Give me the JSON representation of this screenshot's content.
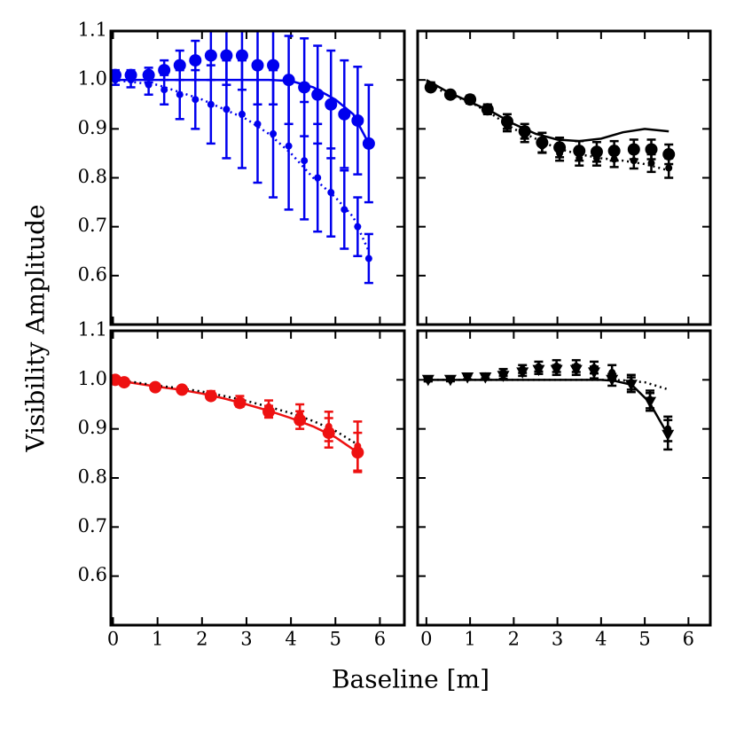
{
  "xlabel": "Baseline [m]",
  "ylabel": "Visibility Amplitude",
  "chart_data": [
    {
      "type": "errorbar",
      "xlim": [
        -0.05,
        6.55
      ],
      "ylim": [
        0.5,
        1.1
      ],
      "xticks": [
        0,
        1,
        2,
        3,
        4,
        5,
        6
      ],
      "yticks": [
        0.6,
        0.7,
        0.8,
        0.9,
        {
          "value": 1,
          "label": "1.0"
        },
        1.1
      ],
      "series": [
        {
          "kind": "line",
          "dash": "solid",
          "color": "#0000ee",
          "x": [
            0,
            1,
            2,
            3,
            3.5,
            4,
            4.5,
            5,
            5.4,
            5.75
          ],
          "values": [
            1.0,
            1.0,
            1.0,
            1.0,
            1.0,
            0.998,
            0.985,
            0.96,
            0.93,
            0.87
          ]
        },
        {
          "kind": "line",
          "dash": "dotted",
          "color": "#0000ee",
          "x": [
            0,
            1,
            2,
            3,
            3.5,
            4,
            4.5,
            5,
            5.4,
            5.75
          ],
          "values": [
            1.0,
            0.99,
            0.96,
            0.92,
            0.89,
            0.85,
            0.8,
            0.76,
            0.72,
            0.65
          ]
        },
        {
          "kind": "errorbar",
          "marker": "circle",
          "size": 7,
          "color": "#0000ee",
          "x": [
            0.05,
            0.4,
            0.8,
            1.15,
            1.5,
            1.85,
            2.2,
            2.55,
            2.9,
            3.25,
            3.6,
            3.95,
            4.3,
            4.6,
            4.9,
            5.2,
            5.5,
            5.75
          ],
          "values": [
            1.01,
            1.01,
            1.01,
            1.02,
            1.03,
            1.04,
            1.05,
            1.05,
            1.05,
            1.03,
            1.03,
            1.0,
            0.985,
            0.97,
            0.95,
            0.93,
            0.917,
            0.87
          ],
          "errors": [
            0.01,
            0.01,
            0.015,
            0.02,
            0.03,
            0.04,
            0.05,
            0.06,
            0.07,
            0.08,
            0.08,
            0.09,
            0.1,
            0.1,
            0.11,
            0.11,
            0.11,
            0.12
          ]
        },
        {
          "kind": "errorbar",
          "marker": "circle",
          "size": 4,
          "color": "#0000ee",
          "x": [
            0.05,
            0.4,
            0.8,
            1.15,
            1.5,
            1.85,
            2.2,
            2.55,
            2.9,
            3.25,
            3.6,
            3.95,
            4.3,
            4.6,
            4.9,
            5.2,
            5.5,
            5.75
          ],
          "values": [
            1.0,
            1.0,
            0.99,
            0.98,
            0.97,
            0.96,
            0.95,
            0.94,
            0.93,
            0.91,
            0.89,
            0.865,
            0.835,
            0.8,
            0.77,
            0.735,
            0.7,
            0.635
          ],
          "errors": [
            0.01,
            0.015,
            0.02,
            0.03,
            0.05,
            0.06,
            0.08,
            0.1,
            0.11,
            0.12,
            0.13,
            0.13,
            0.12,
            0.11,
            0.09,
            0.08,
            0.06,
            0.05
          ]
        }
      ]
    },
    {
      "type": "errorbar",
      "xlim": [
        -0.2,
        6.5
      ],
      "ylim": [
        0.5,
        1.1
      ],
      "xticks": [
        0,
        1,
        2,
        3,
        4,
        5,
        6
      ],
      "yticks": [
        0.6,
        0.7,
        0.8,
        0.9,
        {
          "value": 1,
          "label": "1.0"
        },
        1.1
      ],
      "series": [
        {
          "kind": "line",
          "dash": "solid",
          "color": "#000000",
          "x": [
            0,
            0.5,
            1,
            1.5,
            2,
            2.5,
            3,
            3.5,
            4,
            4.5,
            5,
            5.55
          ],
          "values": [
            1.0,
            0.975,
            0.955,
            0.935,
            0.91,
            0.89,
            0.878,
            0.875,
            0.88,
            0.893,
            0.9,
            0.895
          ]
        },
        {
          "kind": "line",
          "dash": "dotted",
          "color": "#000000",
          "x": [
            0,
            0.5,
            1,
            1.5,
            2,
            2.5,
            3,
            3.5,
            4,
            4.5,
            5,
            5.55
          ],
          "values": [
            0.995,
            0.97,
            0.955,
            0.93,
            0.9,
            0.88,
            0.86,
            0.848,
            0.84,
            0.835,
            0.828,
            0.815
          ]
        },
        {
          "kind": "errorbar",
          "marker": "circle",
          "size": 7,
          "color": "#000000",
          "x": [
            0.1,
            0.55,
            1.0,
            1.4,
            1.85,
            2.25,
            2.65,
            3.05,
            3.5,
            3.9,
            4.3,
            4.75,
            5.15,
            5.55
          ],
          "values": [
            0.985,
            0.97,
            0.96,
            0.94,
            0.915,
            0.895,
            0.872,
            0.862,
            0.855,
            0.853,
            0.855,
            0.858,
            0.858,
            0.848
          ],
          "errors": [
            0.005,
            0.005,
            0.008,
            0.01,
            0.015,
            0.015,
            0.02,
            0.02,
            0.02,
            0.02,
            0.02,
            0.02,
            0.02,
            0.02
          ]
        },
        {
          "kind": "errorbar",
          "marker": "circle",
          "size": 4,
          "color": "#000000",
          "x": [
            0.1,
            0.55,
            1.0,
            1.4,
            1.85,
            2.25,
            2.65,
            3.05,
            3.5,
            3.9,
            4.3,
            4.75,
            5.15,
            5.55
          ],
          "values": [
            0.99,
            0.97,
            0.958,
            0.94,
            0.905,
            0.885,
            0.865,
            0.85,
            0.84,
            0.84,
            0.838,
            0.835,
            0.83,
            0.82
          ],
          "errors": [
            0.005,
            0.005,
            0.006,
            0.008,
            0.01,
            0.012,
            0.014,
            0.015,
            0.015,
            0.015,
            0.016,
            0.016,
            0.018,
            0.02
          ]
        }
      ]
    },
    {
      "type": "errorbar",
      "xlim": [
        -0.05,
        6.55
      ],
      "ylim": [
        0.5,
        1.1
      ],
      "xticks": [
        0,
        1,
        2,
        3,
        4,
        5,
        6
      ],
      "yticks": [
        0.6,
        0.7,
        0.8,
        0.9,
        {
          "value": 1,
          "label": "1.0"
        },
        1.1
      ],
      "series": [
        {
          "kind": "line",
          "dash": "solid",
          "color": "#ee1111",
          "x": [
            0,
            0.5,
            1,
            1.5,
            2,
            2.5,
            3,
            3.5,
            4,
            4.5,
            5,
            5.5
          ],
          "values": [
            1.0,
            0.993,
            0.986,
            0.98,
            0.972,
            0.962,
            0.95,
            0.937,
            0.922,
            0.905,
            0.883,
            0.852
          ]
        },
        {
          "kind": "line",
          "dash": "dotted",
          "color": "#000000",
          "x": [
            0,
            0.5,
            1,
            1.5,
            2,
            2.5,
            3,
            3.5,
            4,
            4.5,
            5,
            5.5
          ],
          "values": [
            1.0,
            0.995,
            0.988,
            0.983,
            0.976,
            0.967,
            0.957,
            0.945,
            0.932,
            0.916,
            0.896,
            0.868
          ]
        },
        {
          "kind": "errorbar",
          "marker": "circle",
          "size": 7,
          "color": "#ee1111",
          "x": [
            0.05,
            0.25,
            0.95,
            1.55,
            2.2,
            2.85,
            3.5,
            4.2,
            4.85,
            5.5
          ],
          "values": [
            1.0,
            0.995,
            0.985,
            0.98,
            0.967,
            0.953,
            0.935,
            0.918,
            0.892,
            0.852
          ],
          "errors": [
            0.003,
            0.003,
            0.004,
            0.005,
            0.007,
            0.008,
            0.012,
            0.018,
            0.03,
            0.04
          ]
        },
        {
          "kind": "errorbar",
          "marker": "circle",
          "size": 4,
          "color": "#ee1111",
          "x": [
            0.05,
            0.25,
            0.95,
            1.55,
            2.2,
            2.85,
            3.5,
            4.2,
            4.85,
            5.5
          ],
          "values": [
            1.0,
            0.995,
            0.985,
            0.98,
            0.97,
            0.958,
            0.945,
            0.93,
            0.905,
            0.865
          ],
          "errors": [
            0.003,
            0.003,
            0.004,
            0.005,
            0.007,
            0.009,
            0.013,
            0.02,
            0.03,
            0.05
          ]
        }
      ]
    },
    {
      "type": "errorbar",
      "xlim": [
        -0.2,
        6.5
      ],
      "ylim": [
        0.5,
        1.1
      ],
      "xticks": [
        0,
        1,
        2,
        3,
        4,
        5,
        6
      ],
      "yticks": [
        0.6,
        0.7,
        0.8,
        0.9,
        {
          "value": 1,
          "label": "1.0"
        },
        1.1
      ],
      "series": [
        {
          "kind": "line",
          "dash": "solid",
          "color": "#000000",
          "x": [
            0,
            1,
            2,
            3,
            4,
            4.3,
            4.7,
            5.1,
            5.55
          ],
          "values": [
            1,
            1,
            1,
            1,
            1,
            0.998,
            0.99,
            0.955,
            0.885
          ]
        },
        {
          "kind": "line",
          "dash": "dotted",
          "color": "#000000",
          "x": [
            0,
            1,
            2,
            3,
            4,
            4.5,
            5,
            5.55
          ],
          "values": [
            1,
            1,
            1,
            1,
            1,
            0.999,
            0.995,
            0.98
          ]
        },
        {
          "kind": "errorbar",
          "marker": "triangle-down",
          "size": 7,
          "color": "#000000",
          "x": [
            0.04,
            0.55,
            0.94,
            1.35,
            1.76,
            2.2,
            2.57,
            2.98,
            3.43,
            3.84,
            4.25,
            4.69,
            5.12,
            5.53
          ],
          "values": [
            1.0,
            1.0,
            1.005,
            1.005,
            1.008,
            1.015,
            1.02,
            1.02,
            1.02,
            1.015,
            1.0,
            0.99,
            0.955,
            0.888
          ],
          "errors": [
            0.003,
            0.003,
            0.004,
            0.005,
            0.006,
            0.007,
            0.008,
            0.01,
            0.01,
            0.012,
            0.012,
            0.015,
            0.018,
            0.03
          ]
        },
        {
          "kind": "errorbar",
          "marker": "circle",
          "size": 4,
          "color": "#000000",
          "x": [
            0.04,
            0.55,
            0.94,
            1.35,
            1.76,
            2.2,
            2.57,
            2.98,
            3.43,
            3.84,
            4.25,
            4.69,
            5.12,
            5.53
          ],
          "values": [
            1.0,
            1.002,
            1.005,
            1.008,
            1.015,
            1.022,
            1.027,
            1.028,
            1.028,
            1.025,
            1.015,
            0.995,
            0.96,
            0.9
          ],
          "errors": [
            0.003,
            0.003,
            0.004,
            0.005,
            0.007,
            0.008,
            0.01,
            0.012,
            0.012,
            0.012,
            0.015,
            0.015,
            0.018,
            0.025
          ]
        }
      ]
    }
  ]
}
